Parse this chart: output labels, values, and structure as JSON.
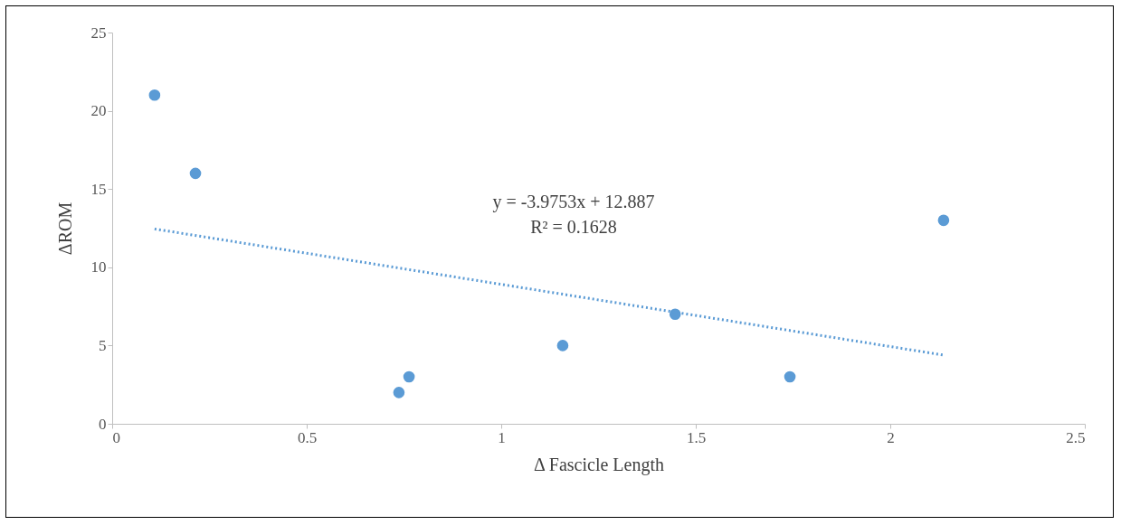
{
  "chart_data": {
    "type": "scatter",
    "xlabel": "Δ Fascicle Length",
    "ylabel": "ΔROM",
    "xlim": [
      0,
      2.5
    ],
    "ylim": [
      0,
      25
    ],
    "xticks": [
      0,
      0.5,
      1,
      1.5,
      2,
      2.5
    ],
    "yticks": [
      0,
      5,
      10,
      15,
      20,
      25
    ],
    "annotations": [
      "y = -3.9753x + 12.887",
      "R² = 0.1628"
    ],
    "series": [
      {
        "marker": "circle",
        "color": "#5b9bd5",
        "x": [
          0.109,
          0.214,
          0.737,
          0.763,
          1.158,
          1.447,
          1.742,
          2.137
        ],
        "values": [
          21,
          16,
          2,
          3,
          5,
          7,
          3,
          13
        ]
      },
      {
        "type": "line",
        "color": "#5b9bd5",
        "line_style": "dotted",
        "x": [
          0.109,
          2.137
        ],
        "values": [
          12.45,
          4.39
        ]
      }
    ]
  }
}
